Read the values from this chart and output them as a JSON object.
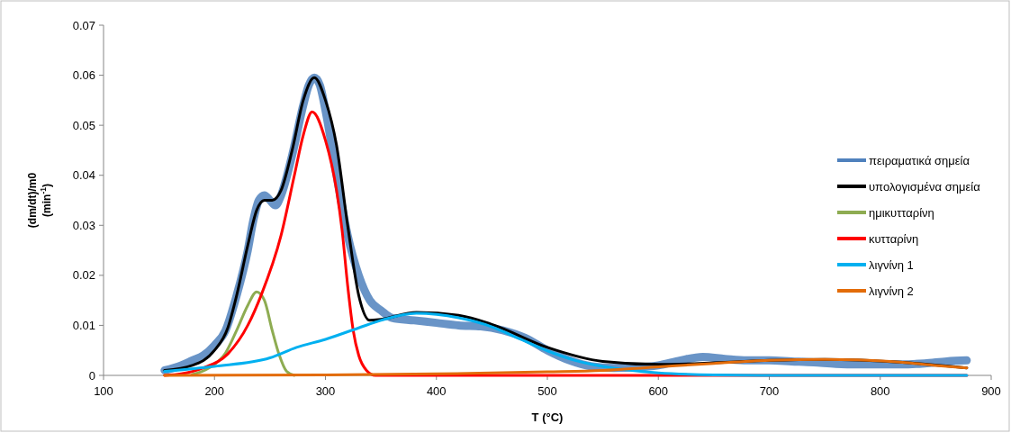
{
  "chart_data": {
    "type": "line",
    "xlabel": "T (°C)",
    "ylabel": "(dm/dt)/m0 (min$^{-1}$)",
    "xlim": [
      100,
      900
    ],
    "xticks": [
      100,
      200,
      300,
      400,
      500,
      600,
      700,
      800,
      900
    ],
    "ylim": [
      0,
      0.07
    ],
    "yticks": [
      0,
      0.01,
      0.02,
      0.03,
      0.04,
      0.05,
      0.06,
      0.07
    ],
    "grid": false,
    "legend": "right",
    "marker": "none",
    "line_style": "solid",
    "series": [
      {
        "name": "πειραματικά σημεία",
        "color": "#4f81bd",
        "x": [
          155,
          170,
          180,
          190,
          200,
          210,
          220,
          230,
          235,
          240,
          245,
          250,
          255,
          260,
          270,
          280,
          285,
          290,
          295,
          300,
          310,
          320,
          330,
          340,
          350,
          360,
          380,
          400,
          420,
          440,
          460,
          480,
          500,
          520,
          540,
          560,
          580,
          600,
          620,
          640,
          660,
          680,
          700,
          720,
          740,
          760,
          780,
          800,
          820,
          840,
          860,
          878
        ],
        "values": [
          0.001,
          0.002,
          0.003,
          0.004,
          0.006,
          0.009,
          0.016,
          0.025,
          0.031,
          0.035,
          0.036,
          0.035,
          0.034,
          0.036,
          0.044,
          0.054,
          0.058,
          0.0595,
          0.058,
          0.053,
          0.04,
          0.028,
          0.02,
          0.015,
          0.013,
          0.0115,
          0.011,
          0.0105,
          0.01,
          0.0098,
          0.009,
          0.0075,
          0.005,
          0.003,
          0.0018,
          0.0015,
          0.0016,
          0.002,
          0.003,
          0.0037,
          0.0033,
          0.003,
          0.003,
          0.0028,
          0.0026,
          0.0023,
          0.0022,
          0.0022,
          0.0022,
          0.0024,
          0.0028,
          0.003
        ]
      },
      {
        "name": "υπολογισμένα σημεία",
        "color": "#000000",
        "x": [
          155,
          180,
          200,
          212,
          220,
          230,
          238,
          245,
          252,
          260,
          270,
          280,
          290,
          300,
          310,
          320,
          330,
          340,
          350,
          382,
          420,
          450,
          500,
          550,
          600,
          650,
          700,
          750,
          820,
          878
        ],
        "values": [
          0.001,
          0.002,
          0.005,
          0.0095,
          0.016,
          0.026,
          0.033,
          0.035,
          0.035,
          0.037,
          0.045,
          0.055,
          0.0595,
          0.055,
          0.046,
          0.03,
          0.016,
          0.011,
          0.0112,
          0.0126,
          0.012,
          0.0102,
          0.0056,
          0.0028,
          0.0022,
          0.0025,
          0.003,
          0.0032,
          0.0026,
          0.0015
        ]
      },
      {
        "name": "ημικυτταρίνη",
        "color": "#8eac52",
        "x": [
          180,
          195,
          210,
          220,
          230,
          238,
          245,
          252,
          258,
          265,
          272
        ],
        "values": [
          0.0002,
          0.0015,
          0.0045,
          0.009,
          0.014,
          0.0167,
          0.015,
          0.009,
          0.0043,
          0.0008,
          0
        ]
      },
      {
        "name": "κυτταρίνη",
        "color": "#ff0000",
        "x": [
          155,
          170,
          190,
          212,
          230,
          242,
          260,
          272,
          280,
          288,
          300,
          310,
          315,
          320,
          325,
          330,
          337,
          345,
          878
        ],
        "values": [
          0,
          0.0003,
          0.0015,
          0.0043,
          0.01,
          0.016,
          0.028,
          0.04,
          0.048,
          0.0527,
          0.047,
          0.037,
          0.029,
          0.018,
          0.009,
          0.004,
          0.001,
          0,
          0
        ]
      },
      {
        "name": "λιγνίνη 1",
        "color": "#00b0f0",
        "x": [
          155,
          200,
          250,
          274,
          300,
          330,
          350,
          382,
          420,
          450,
          475,
          500,
          525,
          550,
          600,
          650,
          700,
          878
        ],
        "values": [
          0.0008,
          0.0018,
          0.0035,
          0.0056,
          0.0072,
          0.0095,
          0.011,
          0.0124,
          0.0115,
          0.0097,
          0.0073,
          0.0049,
          0.003,
          0.0018,
          0.0005,
          0.0001,
          0,
          0
        ]
      },
      {
        "name": "λιγνίνη 2",
        "color": "#e36c09",
        "x": [
          155,
          300,
          400,
          500,
          550,
          600,
          650,
          700,
          750,
          780,
          820,
          850,
          878
        ],
        "values": [
          0,
          0.0001,
          0.0003,
          0.0007,
          0.001,
          0.0017,
          0.0024,
          0.003,
          0.0032,
          0.0031,
          0.0026,
          0.002,
          0.0015
        ]
      }
    ]
  }
}
